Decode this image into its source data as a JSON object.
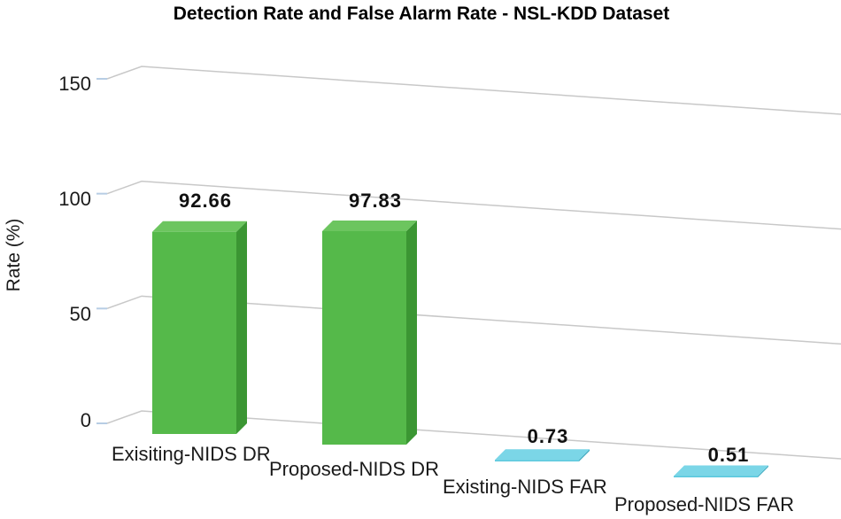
{
  "chart_data": {
    "type": "bar",
    "title": "Detection Rate and False Alarm Rate - NSL-KDD Dataset",
    "xlabel": "",
    "ylabel": "Rate (%)",
    "ylim": [
      0,
      150
    ],
    "yticks": [
      "0",
      "50",
      "100",
      "150"
    ],
    "grid": true,
    "categories": [
      "Exisiting-NIDS DR",
      "Proposed-NIDS DR",
      "Existing-NIDS FAR",
      "Proposed-NIDS FAR"
    ],
    "values": [
      92.66,
      97.83,
      0.73,
      0.51
    ],
    "data_labels": [
      "92.66",
      "97.83",
      "0.73",
      "0.51"
    ],
    "colors": {
      "dr_front": "#55b94a",
      "dr_top": "#6cc55f",
      "dr_side": "#3b9633",
      "far_front": "#5ac8dd",
      "far_top": "#7bd6e7",
      "far_side": "#3aa6bd",
      "grid": "#c8c8c8",
      "tick_mark": "#b7cde4"
    }
  }
}
